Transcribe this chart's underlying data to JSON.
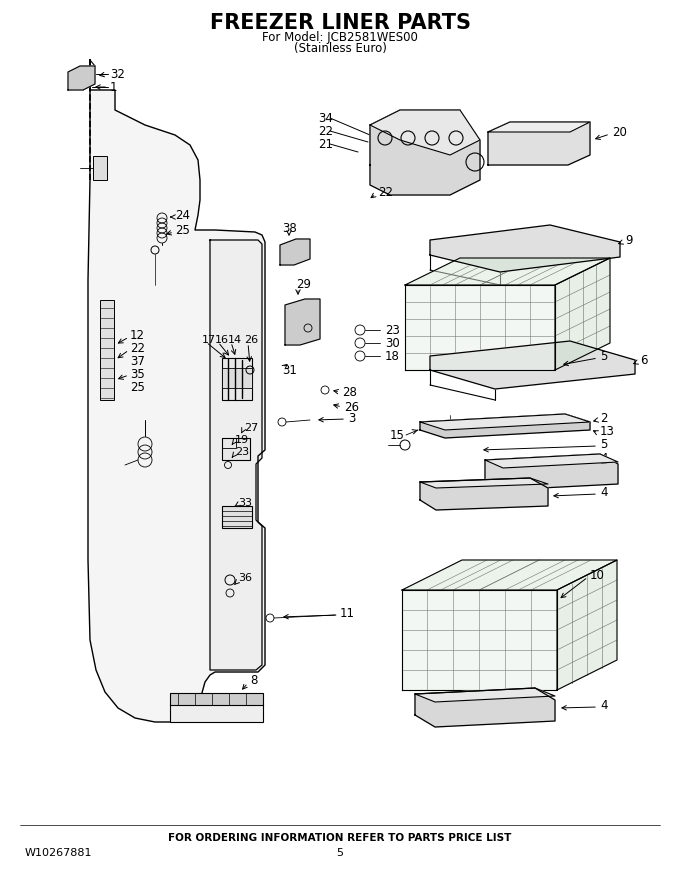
{
  "title": "FREEZER LINER PARTS",
  "subtitle1": "For Model: JCB2581WES00",
  "subtitle2": "(Stainless Euro)",
  "footer_center": "FOR ORDERING INFORMATION REFER TO PARTS PRICE LIST",
  "footer_left": "W10267881",
  "footer_page": "5",
  "bg_color": "#ffffff",
  "line_color": "#000000",
  "gray_color": "#aaaaaa"
}
